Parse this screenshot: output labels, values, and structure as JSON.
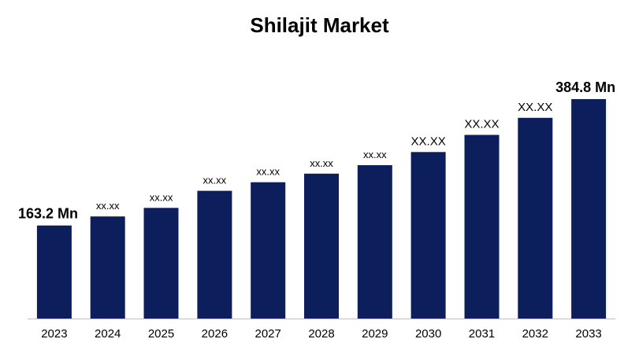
{
  "chart_data": {
    "type": "bar",
    "title": "Shilajit Market",
    "categories": [
      "2023",
      "2024",
      "2025",
      "2026",
      "2027",
      "2028",
      "2029",
      "2030",
      "2031",
      "2032",
      "2033"
    ],
    "values": [
      163.2,
      179.0,
      194.0,
      224.0,
      239.0,
      254.0,
      269.0,
      292.0,
      322.0,
      352.0,
      384.8
    ],
    "data_labels": [
      "163.2 Mn",
      "xx.xx",
      "xx.xx",
      "xx.xx",
      "xx.xx",
      "xx.xx",
      "xx.xx",
      "XX.XX",
      "XX.XX",
      "XX.XX",
      "384.8 Mn"
    ],
    "xlabel": "",
    "ylabel": "",
    "ylim": [
      0,
      420
    ],
    "grid": false,
    "legend": "none",
    "colors": {
      "bar": "#0c1f5c",
      "axis": "#bfbfbf",
      "text": "#000000"
    }
  }
}
